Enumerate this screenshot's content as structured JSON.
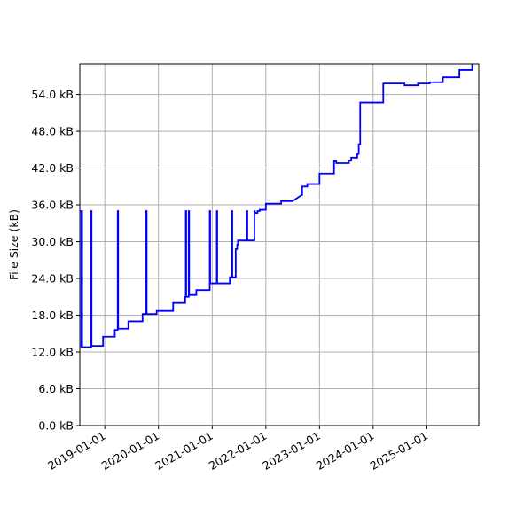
{
  "chart_data": {
    "type": "line",
    "title": "",
    "xlabel": "",
    "ylabel": "File Size (kB)",
    "grid": true,
    "legend": "none",
    "xlim": [
      "2018-07-15",
      "2025-12-20"
    ],
    "ylim": [
      0,
      59
    ],
    "x_ticks": [
      "2019-01-01",
      "2020-01-01",
      "2021-01-01",
      "2022-01-01",
      "2023-01-01",
      "2024-01-01",
      "2025-01-01"
    ],
    "y_ticks": [
      "0.0 kB",
      "6.0 kB",
      "12.0 kB",
      "18.0 kB",
      "24.0 kB",
      "30.0 kB",
      "36.0 kB",
      "42.0 kB",
      "48.0 kB",
      "54.0 kB"
    ],
    "y_tick_values": [
      0,
      6,
      12,
      18,
      24,
      30,
      36,
      42,
      48,
      54
    ],
    "colors": {
      "line": "#0000ff",
      "grid": "#b0b0b0",
      "axes": "#000000"
    },
    "series": [
      {
        "values": [
          [
            "2018-07-15",
            35.0
          ],
          [
            "2018-07-25",
            35.0
          ],
          [
            "2018-07-25",
            12.8
          ],
          [
            "2018-07-28",
            12.8
          ],
          [
            "2018-07-28",
            35.0
          ],
          [
            "2018-07-31",
            35.0
          ],
          [
            "2018-07-31",
            12.8
          ],
          [
            "2018-10-01",
            12.8
          ],
          [
            "2018-10-01",
            35.0
          ],
          [
            "2018-10-03",
            35.0
          ],
          [
            "2018-10-03",
            13.0
          ],
          [
            "2018-12-20",
            13.0
          ],
          [
            "2018-12-20",
            14.5
          ],
          [
            "2019-03-10",
            14.5
          ],
          [
            "2019-03-10",
            15.6
          ],
          [
            "2019-03-30",
            15.6
          ],
          [
            "2019-03-30",
            35.0
          ],
          [
            "2019-04-02",
            35.0
          ],
          [
            "2019-04-02",
            15.8
          ],
          [
            "2019-06-10",
            15.8
          ],
          [
            "2019-06-10",
            17.0
          ],
          [
            "2019-09-15",
            17.0
          ],
          [
            "2019-09-15",
            18.2
          ],
          [
            "2019-10-10",
            18.2
          ],
          [
            "2019-10-10",
            35.0
          ],
          [
            "2019-10-13",
            35.0
          ],
          [
            "2019-10-13",
            18.2
          ],
          [
            "2019-12-20",
            18.2
          ],
          [
            "2019-12-20",
            18.7
          ],
          [
            "2020-04-10",
            18.7
          ],
          [
            "2020-04-10",
            20.0
          ],
          [
            "2020-07-01",
            20.0
          ],
          [
            "2020-07-01",
            21.0
          ],
          [
            "2020-07-05",
            21.0
          ],
          [
            "2020-07-05",
            35.0
          ],
          [
            "2020-07-08",
            35.0
          ],
          [
            "2020-07-08",
            21.0
          ],
          [
            "2020-07-25",
            21.0
          ],
          [
            "2020-07-25",
            35.0
          ],
          [
            "2020-07-28",
            35.0
          ],
          [
            "2020-07-28",
            21.3
          ],
          [
            "2020-09-15",
            21.3
          ],
          [
            "2020-09-15",
            22.1
          ],
          [
            "2020-12-15",
            22.1
          ],
          [
            "2020-12-15",
            35.0
          ],
          [
            "2020-12-18",
            35.0
          ],
          [
            "2020-12-18",
            23.2
          ],
          [
            "2021-02-01",
            23.2
          ],
          [
            "2021-02-01",
            35.0
          ],
          [
            "2021-02-04",
            35.0
          ],
          [
            "2021-02-04",
            23.2
          ],
          [
            "2021-05-01",
            23.2
          ],
          [
            "2021-05-01",
            24.2
          ],
          [
            "2021-05-15",
            24.2
          ],
          [
            "2021-05-15",
            35.0
          ],
          [
            "2021-05-18",
            35.0
          ],
          [
            "2021-05-18",
            24.2
          ],
          [
            "2021-06-10",
            24.2
          ],
          [
            "2021-06-10",
            28.8
          ],
          [
            "2021-06-20",
            28.8
          ],
          [
            "2021-06-20",
            29.5
          ],
          [
            "2021-06-25",
            29.5
          ],
          [
            "2021-06-25",
            30.2
          ],
          [
            "2021-08-25",
            30.2
          ],
          [
            "2021-08-25",
            35.0
          ],
          [
            "2021-08-28",
            35.0
          ],
          [
            "2021-08-28",
            30.2
          ],
          [
            "2021-10-15",
            30.2
          ],
          [
            "2021-10-15",
            35.0
          ],
          [
            "2021-10-18",
            35.0
          ],
          [
            "2021-10-18",
            34.7
          ],
          [
            "2021-11-05",
            34.7
          ],
          [
            "2021-11-05",
            35.0
          ],
          [
            "2021-11-20",
            35.0
          ],
          [
            "2021-11-20",
            35.2
          ],
          [
            "2022-01-01",
            35.2
          ],
          [
            "2022-01-01",
            36.2
          ],
          [
            "2022-04-15",
            36.2
          ],
          [
            "2022-04-15",
            36.6
          ],
          [
            "2022-07-01",
            36.6
          ],
          [
            "2022-09-01",
            37.6
          ],
          [
            "2022-09-05",
            37.6
          ],
          [
            "2022-09-05",
            39.0
          ],
          [
            "2022-10-10",
            39.0
          ],
          [
            "2022-10-10",
            39.4
          ],
          [
            "2023-01-01",
            39.4
          ],
          [
            "2023-01-01",
            41.1
          ],
          [
            "2023-04-10",
            41.1
          ],
          [
            "2023-04-10",
            43.1
          ],
          [
            "2023-04-25",
            43.1
          ],
          [
            "2023-04-25",
            42.8
          ],
          [
            "2023-07-20",
            42.8
          ],
          [
            "2023-07-20",
            43.2
          ],
          [
            "2023-08-05",
            43.2
          ],
          [
            "2023-08-05",
            43.7
          ],
          [
            "2023-09-15",
            43.7
          ],
          [
            "2023-09-15",
            44.3
          ],
          [
            "2023-09-25",
            44.3
          ],
          [
            "2023-09-25",
            45.9
          ],
          [
            "2023-10-05",
            45.9
          ],
          [
            "2023-10-05",
            52.7
          ],
          [
            "2024-03-10",
            52.7
          ],
          [
            "2024-03-10",
            55.8
          ],
          [
            "2024-08-01",
            55.8
          ],
          [
            "2024-08-01",
            55.5
          ],
          [
            "2024-11-01",
            55.5
          ],
          [
            "2024-11-01",
            55.8
          ],
          [
            "2025-01-20",
            55.8
          ],
          [
            "2025-01-20",
            56.0
          ],
          [
            "2025-04-20",
            56.0
          ],
          [
            "2025-04-20",
            56.8
          ],
          [
            "2025-08-10",
            56.8
          ],
          [
            "2025-08-10",
            58.0
          ],
          [
            "2025-11-05",
            58.0
          ],
          [
            "2025-11-05",
            59.5
          ]
        ]
      }
    ]
  }
}
